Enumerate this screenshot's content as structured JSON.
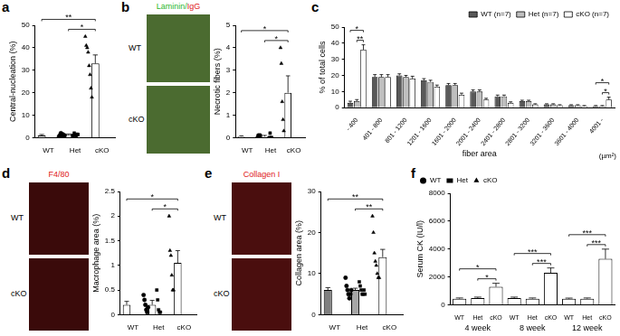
{
  "chart_data": [
    {
      "panel": "a",
      "type": "bar",
      "categories": [
        "WT",
        "Het",
        "cKO"
      ],
      "values": [
        1.0,
        1.2,
        33
      ],
      "errors": [
        0.4,
        0.4,
        3.8
      ],
      "colors": [
        "#ffffff",
        "#ffffff",
        "#ffffff"
      ],
      "markers": [
        "circle",
        "rect",
        "triangle"
      ],
      "points": [
        [
          0.5,
          1,
          2,
          0.8,
          1.5,
          0.3,
          1
        ],
        [
          1,
          0.5,
          2,
          1.2,
          0.8,
          1.5,
          1.4
        ],
        [
          45,
          41,
          40,
          38,
          32,
          28,
          22,
          18
        ]
      ],
      "ylabel": "Central-nucleation (%)",
      "ylim": [
        0,
        50
      ],
      "yticks": [
        0,
        10,
        20,
        30,
        40,
        50
      ],
      "grid": false,
      "annotations": [
        {
          "from": 0,
          "to": 2,
          "text": "**"
        },
        {
          "from": 1,
          "to": 2,
          "text": "*"
        }
      ]
    },
    {
      "panel": "b",
      "type": "bar",
      "images": {
        "channel": [
          {
            "text": "Laminin",
            "color": "#2db82d"
          },
          {
            "text": "/",
            "color": "#2db82d"
          },
          {
            "text": "IgG",
            "color": "#e02020"
          }
        ],
        "rows": [
          "WT",
          "cKO"
        ],
        "color": "#4b6b30"
      },
      "categories": [
        "WT",
        "Het",
        "cKO"
      ],
      "values": [
        0.05,
        0.05,
        2.0
      ],
      "errors": [
        0.03,
        0.05,
        0.75
      ],
      "colors": [
        "#ffffff",
        "#ffffff",
        "#ffffff"
      ],
      "markers": [
        "circle",
        "rect",
        "triangle"
      ],
      "points": [
        [
          0,
          0.1,
          0,
          0.1
        ],
        [
          0,
          0.2,
          0,
          0
        ],
        [
          4.0,
          3.3,
          1.6,
          0.8,
          0.3
        ]
      ],
      "ylabel": "Necrotic fibers (%)",
      "ylim": [
        0,
        5
      ],
      "yticks": [
        0,
        1,
        2,
        3,
        4,
        5
      ],
      "grid": false,
      "annotations": [
        {
          "from": 0,
          "to": 2,
          "text": "*"
        },
        {
          "from": 1,
          "to": 2,
          "text": "*"
        }
      ]
    },
    {
      "panel": "c",
      "type": "bar",
      "categories": [
        "- 400",
        "401 - 800",
        "801 - 1200",
        "1201 - 1600",
        "1601 - 2000",
        "2001 - 2400",
        "2401 - 2800",
        "2801 - 3200",
        "3201 - 3600",
        "3601 - 4000",
        "4001 -"
      ],
      "series": [
        {
          "name": "WT (n=7)",
          "color": "#595959",
          "values": [
            3,
            19,
            20,
            17,
            14,
            10,
            7,
            4,
            2,
            1.5,
            1
          ],
          "errors": [
            1,
            1.5,
            1,
            1,
            1,
            1,
            0.8,
            0.6,
            0.4,
            0.3,
            0.3
          ]
        },
        {
          "name": "Het (n=7)",
          "color": "#bfbfbf",
          "values": [
            4,
            19,
            19,
            16,
            14,
            10,
            7,
            4,
            2,
            1.5,
            1
          ],
          "errors": [
            1,
            1.5,
            1,
            1,
            1,
            1,
            0.8,
            0.6,
            0.4,
            0.3,
            0.3
          ]
        },
        {
          "name": "cKO (n=7)",
          "color": "#ffffff",
          "values": [
            36,
            19,
            18,
            13,
            8,
            5,
            3,
            2,
            1.5,
            1,
            5
          ],
          "errors": [
            3,
            1.5,
            1.5,
            1,
            1,
            0.8,
            0.6,
            0.4,
            0.3,
            0.3,
            1.5
          ]
        }
      ],
      "ylabel": "% of total cells",
      "xlabel": "fiber area",
      "xlabel_note": "(µm²)",
      "ylim": [
        0,
        50
      ],
      "yticks": [
        0,
        10,
        20,
        30,
        40,
        50
      ],
      "grid": false,
      "legend": "top-right",
      "annotations": [
        {
          "category": 0,
          "from": 0,
          "to": 2,
          "text": "*"
        },
        {
          "category": 0,
          "from": 1,
          "to": 2,
          "text": "**"
        },
        {
          "category": 10,
          "from": 0,
          "to": 2,
          "text": "*"
        },
        {
          "category": 10,
          "from": 1,
          "to": 2,
          "text": "*"
        }
      ]
    },
    {
      "panel": "d",
      "type": "bar",
      "images": {
        "channel": [
          {
            "text": "F4/80",
            "color": "#e02020"
          }
        ],
        "rows": [
          "WT",
          "cKO"
        ],
        "color": "#3a0a0a"
      },
      "categories": [
        "WT",
        "Het",
        "cKO"
      ],
      "values": [
        0.2,
        0.2,
        1.05
      ],
      "errors": [
        0.07,
        0.09,
        0.25
      ],
      "colors": [
        "#ffffff",
        "#ffffff",
        "#ffffff"
      ],
      "markers": [
        "circle",
        "rect",
        "triangle"
      ],
      "points": [
        [
          0.4,
          0.3,
          0.2,
          0.1,
          0.05,
          0.15
        ],
        [
          0.5,
          0.3,
          0.1,
          0.05,
          0.05
        ],
        [
          2.0,
          1.3,
          1.2,
          0.8,
          0.5,
          0.5
        ]
      ],
      "ylabel": "Macrophage area (%)",
      "ylim": [
        0,
        2.5
      ],
      "yticks": [
        0,
        0.5,
        1,
        1.5,
        2,
        2.5
      ],
      "grid": false,
      "annotations": [
        {
          "from": 0,
          "to": 2,
          "text": "*"
        },
        {
          "from": 1,
          "to": 2,
          "text": "*"
        }
      ]
    },
    {
      "panel": "e",
      "type": "bar",
      "images": {
        "channel": [
          {
            "text": "Collagen I",
            "color": "#e02020"
          }
        ],
        "rows": [
          "WT",
          "cKO"
        ],
        "color": "#4a0e0e"
      },
      "categories": [
        "WT",
        "Het",
        "cKO"
      ],
      "values": [
        6,
        6,
        14
      ],
      "errors": [
        0.6,
        0.45,
        1.9
      ],
      "colors": [
        "#808080",
        "#a6a6a6",
        "#ffffff"
      ],
      "markers": [
        "circle",
        "rect",
        "triangle"
      ],
      "points": [
        [
          9,
          7,
          6,
          5,
          4,
          5,
          6
        ],
        [
          8,
          7,
          6,
          5,
          5,
          6,
          5
        ],
        [
          24,
          20,
          15,
          13,
          12,
          10,
          9,
          9
        ]
      ],
      "ylabel": "Collagen area (%)",
      "ylim": [
        0,
        30
      ],
      "yticks": [
        0,
        10,
        20,
        30
      ],
      "grid": false,
      "annotations": [
        {
          "from": 0,
          "to": 2,
          "text": "**"
        },
        {
          "from": 1,
          "to": 2,
          "text": "**"
        }
      ]
    },
    {
      "panel": "f",
      "type": "bar",
      "categories": [
        "WT",
        "Het",
        "cKO",
        "WT",
        "Het",
        "cKO",
        "WT",
        "Het",
        "cKO"
      ],
      "groups": [
        "4 week",
        "8 week",
        "12 week"
      ],
      "values": [
        450,
        500,
        1300,
        500,
        450,
        2300,
        450,
        450,
        3300
      ],
      "errors": [
        50,
        60,
        250,
        60,
        50,
        350,
        40,
        50,
        700
      ],
      "colors": [
        "#ffffff",
        "#ffffff",
        "#ffffff",
        "#ffffff",
        "#ffffff",
        "#ffffff",
        "#ffffff",
        "#ffffff",
        "#ffffff"
      ],
      "legend": "top-left",
      "legend_items": [
        {
          "name": "WT",
          "marker": "circle"
        },
        {
          "name": "Het",
          "marker": "rect"
        },
        {
          "name": "cKO",
          "marker": "triangle"
        }
      ],
      "ylabel": "Serum CK (IU/l)",
      "ylim": [
        0,
        8000
      ],
      "yticks": [
        0,
        2000,
        4000,
        6000,
        8000
      ],
      "grid": false,
      "annotations": [
        {
          "from": 0,
          "to": 2,
          "text": "*"
        },
        {
          "from": 1,
          "to": 2,
          "text": "*"
        },
        {
          "from": 3,
          "to": 5,
          "text": "***"
        },
        {
          "from": 4,
          "to": 5,
          "text": "***"
        },
        {
          "from": 6,
          "to": 8,
          "text": "***"
        },
        {
          "from": 7,
          "to": 8,
          "text": "***"
        }
      ]
    }
  ]
}
